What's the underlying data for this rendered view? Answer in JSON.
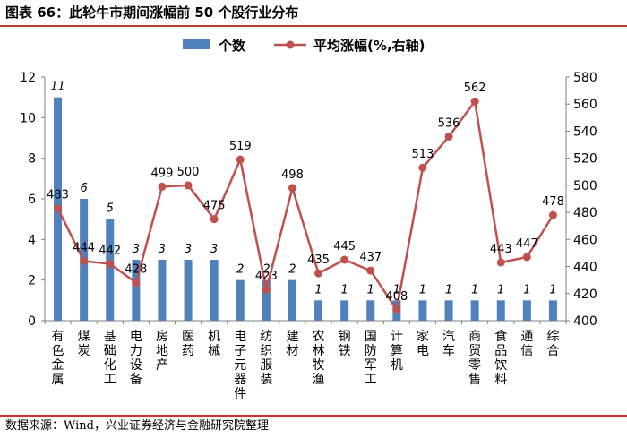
{
  "header": {
    "title": "图表 66：此轮牛市期间涨幅前 50 个股行业分布"
  },
  "footer": {
    "source": "数据来源：Wind，兴业证券经济与金融研究院整理"
  },
  "colors": {
    "bar": "#4f81bd",
    "line": "#c0504d",
    "rule": "#c0392b"
  },
  "chart_data": {
    "type": "bar+line",
    "title": "",
    "categories": [
      "有色金属",
      "煤炭",
      "基础化工",
      "电力设备",
      "房地产",
      "医药",
      "机械",
      "电子元器件",
      "纺织服装",
      "建材",
      "农林牧渔",
      "钢铁",
      "国防军工",
      "计算机",
      "家电",
      "汽车",
      "商贸零售",
      "食品饮料",
      "通信",
      "综合"
    ],
    "series": [
      {
        "name": "个数",
        "type": "bar",
        "axis": "left",
        "values": [
          11,
          6,
          5,
          3,
          3,
          3,
          3,
          2,
          2,
          2,
          1,
          1,
          1,
          1,
          1,
          1,
          1,
          1,
          1,
          1
        ]
      },
      {
        "name": "平均涨幅(%,右轴)",
        "type": "line",
        "axis": "right",
        "values": [
          483,
          444,
          442,
          428,
          499,
          500,
          475,
          519,
          423,
          498,
          435,
          445,
          437,
          408,
          513,
          536,
          562,
          443,
          447,
          478
        ]
      }
    ],
    "y_left": {
      "min": 0,
      "max": 12,
      "ticks": [
        "0",
        "2",
        "4",
        "6",
        "8",
        "10",
        "12"
      ]
    },
    "y_right": {
      "min": 400,
      "max": 580,
      "ticks": [
        "400",
        "420",
        "440",
        "460",
        "480",
        "500",
        "520",
        "540",
        "560",
        "580"
      ]
    },
    "legend": [
      "个数",
      "平均涨幅(%,右轴)"
    ],
    "legend_position": "top-center",
    "grid": false
  }
}
